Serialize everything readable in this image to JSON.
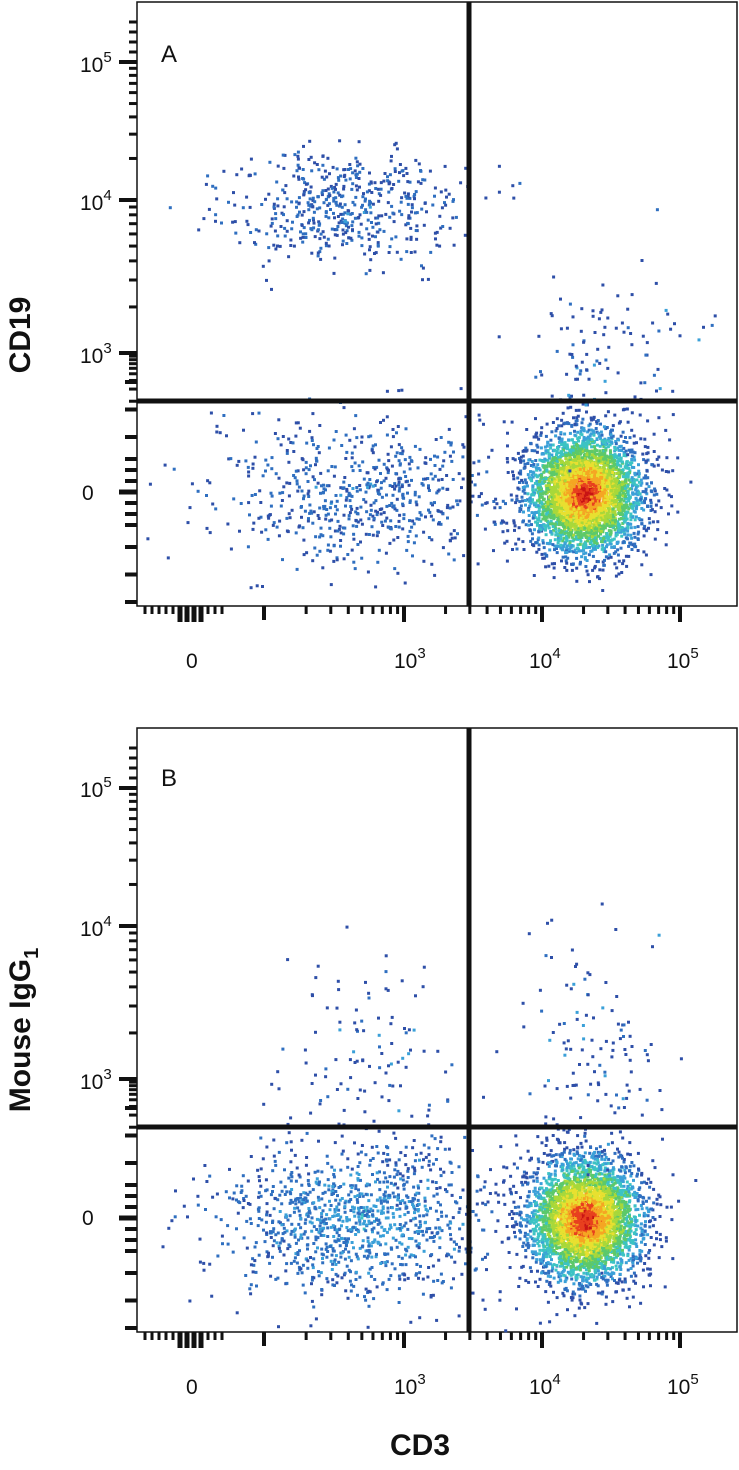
{
  "chart_data": [
    {
      "type": "scatter",
      "panel_label": "A",
      "ylabel": "CD19",
      "xlabel": "",
      "x_scale": "biexponential",
      "y_scale": "biexponential",
      "x_tick_labels": [
        {
          "base": "0",
          "sup": ""
        },
        {
          "base": "10",
          "sup": "3"
        },
        {
          "base": "10",
          "sup": "4"
        },
        {
          "base": "10",
          "sup": "5"
        }
      ],
      "y_tick_labels": [
        {
          "base": "0",
          "sup": ""
        },
        {
          "base": "10",
          "sup": "3"
        },
        {
          "base": "10",
          "sup": "4"
        },
        {
          "base": "10",
          "sup": "5"
        }
      ],
      "quadrant_gate": {
        "x": 2500,
        "y": 450
      },
      "color_scale": "density (blue-cyan-green-yellow-red)",
      "populations": [
        {
          "x_center": 500,
          "y_center": 9000,
          "spread": "medium",
          "density": "low"
        },
        {
          "x_center": 600,
          "y_center": 0,
          "spread": "wide",
          "density": "low"
        },
        {
          "x_center": 20000,
          "y_center": 0,
          "spread": "tight",
          "density": "very high"
        },
        {
          "x_center": 25000,
          "y_center": 900,
          "spread": "sparse",
          "density": "low"
        }
      ]
    },
    {
      "type": "scatter",
      "panel_label": "B",
      "ylabel_parts": {
        "main": "Mouse IgG",
        "sub": "1"
      },
      "xlabel": "CD3",
      "x_scale": "biexponential",
      "y_scale": "biexponential",
      "x_tick_labels": [
        {
          "base": "0",
          "sup": ""
        },
        {
          "base": "10",
          "sup": "3"
        },
        {
          "base": "10",
          "sup": "4"
        },
        {
          "base": "10",
          "sup": "5"
        }
      ],
      "y_tick_labels": [
        {
          "base": "0",
          "sup": ""
        },
        {
          "base": "10",
          "sup": "3"
        },
        {
          "base": "10",
          "sup": "4"
        },
        {
          "base": "10",
          "sup": "5"
        }
      ],
      "quadrant_gate": {
        "x": 2500,
        "y": 450
      },
      "color_scale": "density (blue-cyan-green-yellow-red)",
      "populations": [
        {
          "x_center": 600,
          "y_center": 0,
          "spread": "wide",
          "density": "medium"
        },
        {
          "x_center": 20000,
          "y_center": 0,
          "spread": "tight",
          "density": "very high"
        },
        {
          "x_center": 25000,
          "y_center": 1500,
          "spread": "sparse",
          "density": "low"
        },
        {
          "x_center": 700,
          "y_center": 1200,
          "spread": "sparse",
          "density": "low"
        }
      ]
    }
  ]
}
